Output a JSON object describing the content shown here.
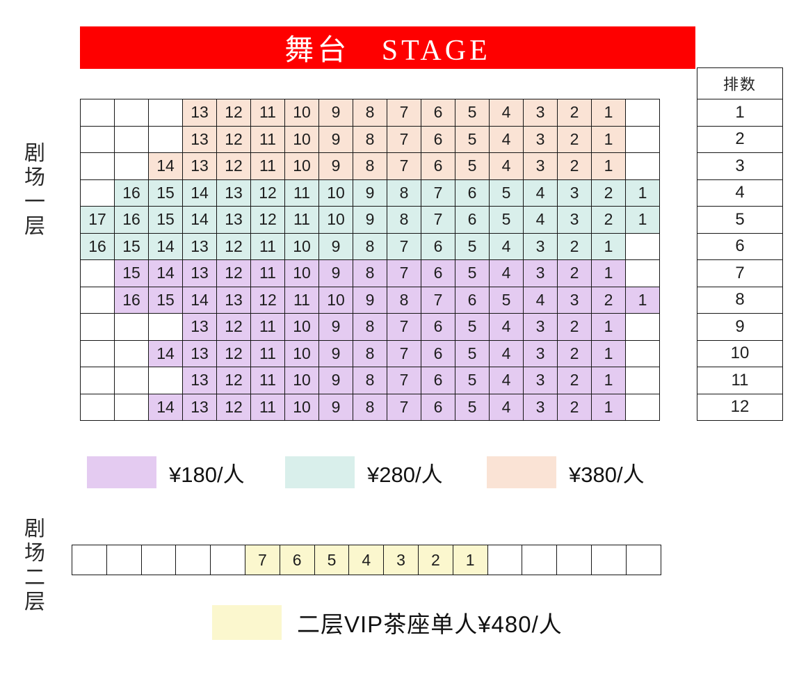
{
  "stage": {
    "label": "舞台 STAGE",
    "bg": "#FE0000"
  },
  "row_index": {
    "header": "排数",
    "rows": [
      "1",
      "2",
      "3",
      "4",
      "5",
      "6",
      "7",
      "8",
      "9",
      "10",
      "11",
      "12"
    ]
  },
  "tiers": {
    "t180": {
      "color": "#E4CBF1",
      "label": "¥180/人"
    },
    "t280": {
      "color": "#D9EFEB",
      "label": "¥280/人"
    },
    "t380": {
      "color": "#FAE3D5",
      "label": "¥380/人"
    },
    "t480": {
      "color": "#FBF7CE",
      "label": "二层VIP茶座单人¥480/人"
    }
  },
  "legend": [
    "t180",
    "t280",
    "t380"
  ],
  "level1": {
    "label": "剧场一层",
    "rows": [
      {
        "row": "1",
        "tier": "t380",
        "cells": [
          "",
          "",
          "",
          "13",
          "12",
          "11",
          "10",
          "9",
          "8",
          "7",
          "6",
          "5",
          "4",
          "3",
          "2",
          "1",
          ""
        ]
      },
      {
        "row": "2",
        "tier": "t380",
        "cells": [
          "",
          "",
          "",
          "13",
          "12",
          "11",
          "10",
          "9",
          "8",
          "7",
          "6",
          "5",
          "4",
          "3",
          "2",
          "1",
          ""
        ]
      },
      {
        "row": "3",
        "tier": "t380",
        "cells": [
          "",
          "",
          "14",
          "13",
          "12",
          "11",
          "10",
          "9",
          "8",
          "7",
          "6",
          "5",
          "4",
          "3",
          "2",
          "1",
          ""
        ]
      },
      {
        "row": "4",
        "tier": "t280",
        "cells": [
          "",
          "16",
          "15",
          "14",
          "13",
          "12",
          "11",
          "10",
          "9",
          "8",
          "7",
          "6",
          "5",
          "4",
          "3",
          "2",
          "1"
        ]
      },
      {
        "row": "5",
        "tier": "t280",
        "cells": [
          "17",
          "16",
          "15",
          "14",
          "13",
          "12",
          "11",
          "10",
          "9",
          "8",
          "7",
          "6",
          "5",
          "4",
          "3",
          "2",
          "1"
        ]
      },
      {
        "row": "6",
        "tier": "t280",
        "cells": [
          "16",
          "15",
          "14",
          "13",
          "12",
          "11",
          "10",
          "9",
          "8",
          "7",
          "6",
          "5",
          "4",
          "3",
          "2",
          "1",
          ""
        ]
      },
      {
        "row": "7",
        "tier": "t180",
        "cells": [
          "",
          "15",
          "14",
          "13",
          "12",
          "11",
          "10",
          "9",
          "8",
          "7",
          "6",
          "5",
          "4",
          "3",
          "2",
          "1",
          ""
        ]
      },
      {
        "row": "8",
        "tier": "t180",
        "cells": [
          "",
          "16",
          "15",
          "14",
          "13",
          "12",
          "11",
          "10",
          "9",
          "8",
          "7",
          "6",
          "5",
          "4",
          "3",
          "2",
          "1"
        ]
      },
      {
        "row": "9",
        "tier": "t180",
        "cells": [
          "",
          "",
          "",
          "13",
          "12",
          "11",
          "10",
          "9",
          "8",
          "7",
          "6",
          "5",
          "4",
          "3",
          "2",
          "1",
          ""
        ]
      },
      {
        "row": "10",
        "tier": "t180",
        "cells": [
          "",
          "",
          "14",
          "13",
          "12",
          "11",
          "10",
          "9",
          "8",
          "7",
          "6",
          "5",
          "4",
          "3",
          "2",
          "1",
          ""
        ]
      },
      {
        "row": "11",
        "tier": "t180",
        "cells": [
          "",
          "",
          "",
          "13",
          "12",
          "11",
          "10",
          "9",
          "8",
          "7",
          "6",
          "5",
          "4",
          "3",
          "2",
          "1",
          ""
        ]
      },
      {
        "row": "12",
        "tier": "t180",
        "cells": [
          "",
          "",
          "14",
          "13",
          "12",
          "11",
          "10",
          "9",
          "8",
          "7",
          "6",
          "5",
          "4",
          "3",
          "2",
          "1",
          ""
        ]
      }
    ]
  },
  "level2": {
    "label": "剧场二层",
    "tier": "t480",
    "cells": [
      "",
      "",
      "",
      "",
      "",
      "7",
      "6",
      "5",
      "4",
      "3",
      "2",
      "1",
      "",
      "",
      "",
      "",
      ""
    ]
  }
}
